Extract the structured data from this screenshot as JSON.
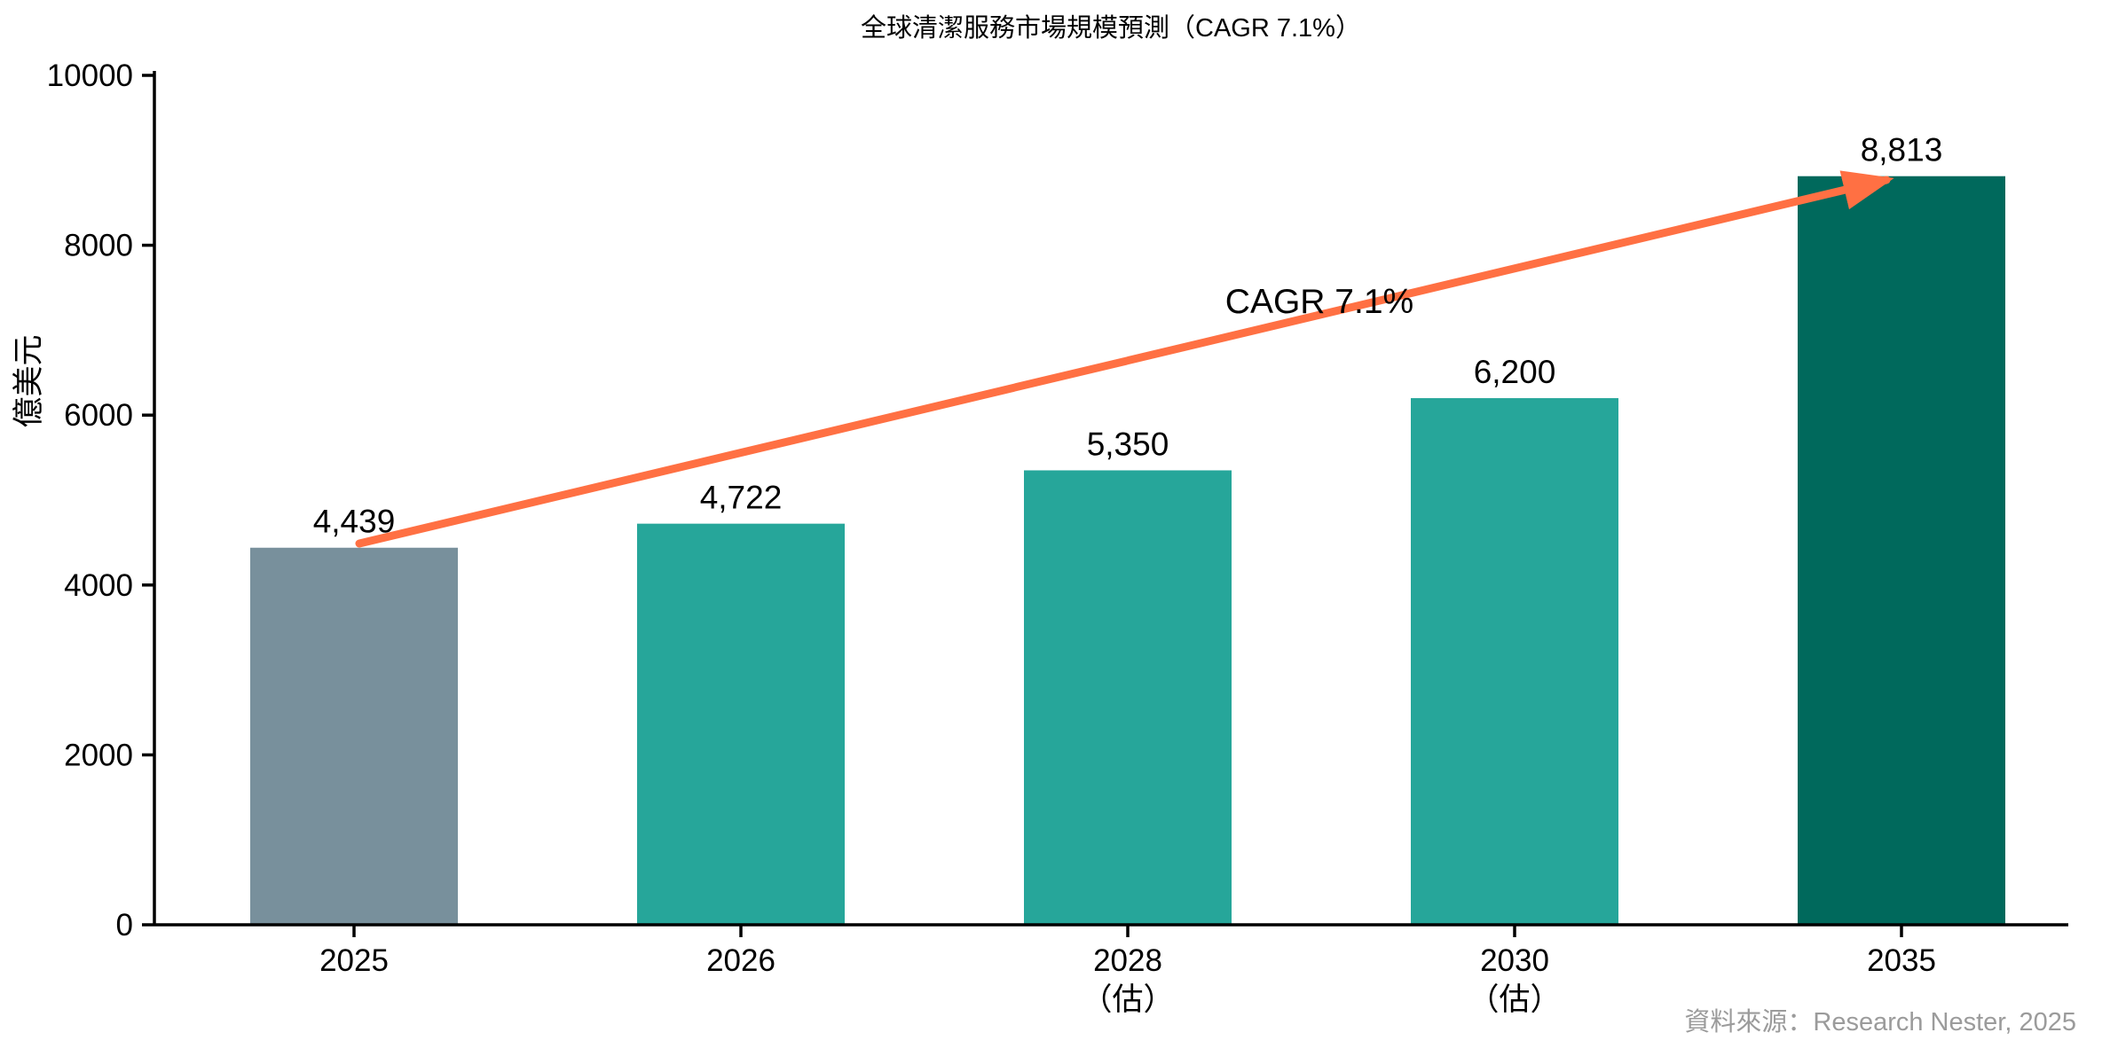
{
  "chart_data": {
    "type": "bar",
    "title": "全球清潔服務市場規模預測（CAGR 7.1%）",
    "ylabel": "億美元",
    "xlabel": "",
    "ylim": [
      0,
      10000
    ],
    "yticks": [
      0,
      2000,
      4000,
      6000,
      8000,
      10000
    ],
    "ytick_labels": [
      "0",
      "2000",
      "4000",
      "6000",
      "8000",
      "10000"
    ],
    "categories": [
      "2025",
      "2026",
      "2028\n（估）",
      "2030\n（估）",
      "2035"
    ],
    "values": [
      4439,
      4722,
      5350,
      6200,
      8813
    ],
    "value_labels": [
      "4,439",
      "4,722",
      "5,350",
      "6,200",
      "8,813"
    ],
    "bar_colors": [
      "#78909C",
      "#26A69A",
      "#26A69A",
      "#26A69A",
      "#00695C"
    ],
    "grid": false,
    "legend": null,
    "annotation": {
      "text": "CAGR 7.1%",
      "color": "#FF7043",
      "arrow_from_category": "2025",
      "arrow_to_category": "2035"
    },
    "source_note": "資料來源：Research Nester, 2025"
  },
  "colors": {
    "axis": "#000000",
    "text": "#000000",
    "source_text": "#9b9b9b",
    "background": "#ffffff",
    "bar_gray": "#78909C",
    "bar_teal": "#26A69A",
    "bar_dark_teal": "#00695C",
    "arrow_orange": "#FF7043"
  }
}
